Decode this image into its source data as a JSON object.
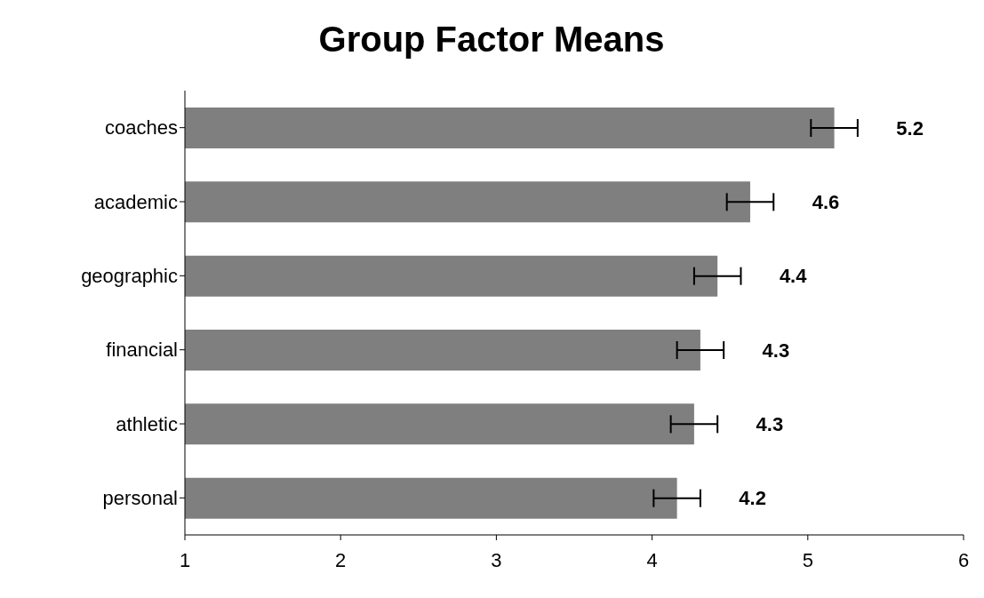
{
  "chart_data": {
    "type": "bar",
    "orientation": "horizontal",
    "title": "Group Factor Means",
    "categories": [
      "coaches",
      "academic",
      "geographic",
      "financial",
      "athletic",
      "personal"
    ],
    "values": [
      5.17,
      4.63,
      4.42,
      4.31,
      4.27,
      4.16
    ],
    "errors": [
      0.15,
      0.15,
      0.15,
      0.15,
      0.15,
      0.15
    ],
    "value_labels": [
      "5.2",
      "4.6",
      "4.4",
      "4.3",
      "4.3",
      "4.2"
    ],
    "color": "#7f7f7f",
    "xlim": [
      1,
      6
    ],
    "xticks": [
      1,
      2,
      3,
      4,
      5,
      6
    ],
    "grid": false,
    "legend": false
  }
}
